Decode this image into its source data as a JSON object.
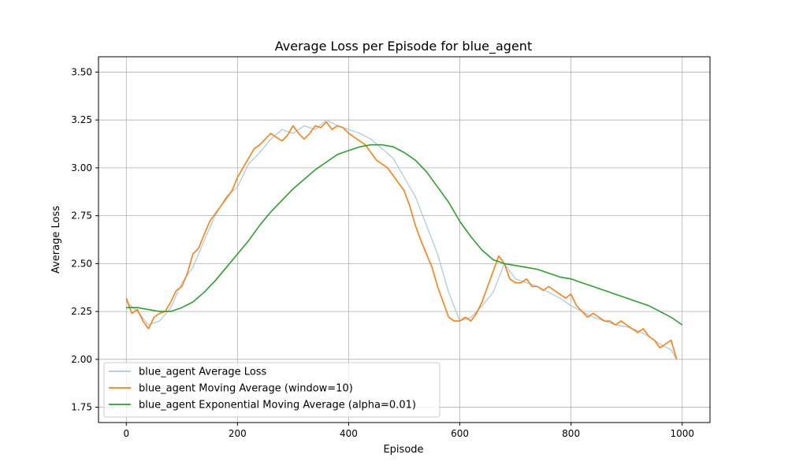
{
  "chart_data": {
    "type": "line",
    "title": "Average Loss per Episode for blue_agent",
    "xlabel": "Episode",
    "ylabel": "Average Loss",
    "xlim": [
      -50,
      1050
    ],
    "ylim": [
      1.67,
      3.58
    ],
    "xticks": [
      0,
      200,
      400,
      600,
      800,
      1000
    ],
    "yticks": [
      1.75,
      2.0,
      2.25,
      2.5,
      2.75,
      3.0,
      3.25,
      3.5
    ],
    "xtick_labels": [
      "0",
      "200",
      "400",
      "600",
      "800",
      "1000"
    ],
    "ytick_labels": [
      "1.75",
      "2.00",
      "2.25",
      "2.50",
      "2.75",
      "3.00",
      "3.25",
      "3.50"
    ],
    "grid": true,
    "legend_position": "lower-left",
    "series": [
      {
        "name": "blue_agent Average Loss",
        "color": "#a6c8e0",
        "x": [
          0,
          20,
          40,
          60,
          80,
          100,
          120,
          140,
          160,
          180,
          200,
          220,
          240,
          260,
          280,
          300,
          320,
          340,
          360,
          380,
          400,
          420,
          440,
          460,
          480,
          500,
          520,
          540,
          560,
          580,
          600,
          620,
          640,
          660,
          680,
          700,
          720,
          740,
          760,
          780,
          800,
          820,
          840,
          860,
          880,
          900,
          920,
          940,
          960,
          980,
          990
        ],
        "y": [
          2.3,
          2.25,
          2.18,
          2.2,
          2.27,
          2.4,
          2.48,
          2.62,
          2.75,
          2.85,
          2.9,
          3.02,
          3.08,
          3.15,
          3.2,
          3.18,
          3.22,
          3.2,
          3.25,
          3.22,
          3.2,
          3.18,
          3.15,
          3.1,
          3.05,
          2.95,
          2.85,
          2.7,
          2.55,
          2.35,
          2.2,
          2.22,
          2.28,
          2.35,
          2.5,
          2.42,
          2.4,
          2.38,
          2.35,
          2.32,
          2.28,
          2.25,
          2.22,
          2.2,
          2.18,
          2.17,
          2.15,
          2.12,
          2.08,
          2.05,
          2.0
        ]
      },
      {
        "name": "blue_agent Moving Average (window=10)",
        "color": "#ff7f0e",
        "x": [
          0,
          10,
          20,
          30,
          40,
          50,
          60,
          70,
          80,
          90,
          100,
          110,
          120,
          130,
          140,
          150,
          160,
          170,
          180,
          190,
          200,
          210,
          220,
          230,
          240,
          250,
          260,
          270,
          280,
          290,
          300,
          310,
          320,
          330,
          340,
          350,
          360,
          370,
          380,
          390,
          400,
          410,
          420,
          430,
          440,
          450,
          460,
          470,
          480,
          490,
          500,
          510,
          520,
          530,
          540,
          550,
          560,
          570,
          580,
          590,
          600,
          610,
          620,
          630,
          640,
          650,
          660,
          670,
          680,
          690,
          700,
          710,
          720,
          730,
          740,
          750,
          760,
          770,
          780,
          790,
          800,
          810,
          820,
          830,
          840,
          850,
          860,
          870,
          880,
          890,
          900,
          910,
          920,
          930,
          940,
          950,
          960,
          970,
          980,
          990
        ],
        "y": [
          2.32,
          2.24,
          2.26,
          2.2,
          2.16,
          2.22,
          2.24,
          2.25,
          2.3,
          2.36,
          2.38,
          2.45,
          2.55,
          2.58,
          2.65,
          2.72,
          2.76,
          2.8,
          2.84,
          2.88,
          2.95,
          3.0,
          3.05,
          3.1,
          3.12,
          3.15,
          3.18,
          3.16,
          3.14,
          3.17,
          3.22,
          3.18,
          3.15,
          3.18,
          3.22,
          3.21,
          3.24,
          3.2,
          3.22,
          3.21,
          3.18,
          3.16,
          3.14,
          3.12,
          3.08,
          3.04,
          3.02,
          3.0,
          2.96,
          2.92,
          2.88,
          2.8,
          2.7,
          2.62,
          2.55,
          2.48,
          2.38,
          2.3,
          2.22,
          2.2,
          2.2,
          2.22,
          2.2,
          2.24,
          2.3,
          2.38,
          2.46,
          2.54,
          2.5,
          2.42,
          2.4,
          2.4,
          2.42,
          2.38,
          2.38,
          2.36,
          2.38,
          2.36,
          2.34,
          2.32,
          2.34,
          2.28,
          2.25,
          2.22,
          2.24,
          2.22,
          2.2,
          2.2,
          2.18,
          2.2,
          2.18,
          2.16,
          2.14,
          2.16,
          2.12,
          2.1,
          2.06,
          2.08,
          2.1,
          2.0
        ]
      },
      {
        "name": "blue_agent Exponential Moving Average (alpha=0.01)",
        "color": "#2ca02c",
        "x": [
          0,
          20,
          40,
          60,
          80,
          100,
          120,
          140,
          160,
          180,
          200,
          220,
          240,
          260,
          280,
          300,
          320,
          340,
          360,
          380,
          400,
          420,
          440,
          460,
          480,
          500,
          520,
          540,
          560,
          580,
          600,
          620,
          640,
          660,
          680,
          700,
          720,
          740,
          760,
          780,
          800,
          820,
          840,
          860,
          880,
          900,
          920,
          940,
          960,
          980,
          1000
        ],
        "y": [
          2.27,
          2.27,
          2.26,
          2.25,
          2.25,
          2.27,
          2.3,
          2.35,
          2.41,
          2.48,
          2.55,
          2.62,
          2.7,
          2.77,
          2.83,
          2.89,
          2.94,
          2.99,
          3.03,
          3.07,
          3.09,
          3.11,
          3.12,
          3.12,
          3.11,
          3.08,
          3.04,
          2.98,
          2.9,
          2.82,
          2.72,
          2.64,
          2.57,
          2.52,
          2.5,
          2.49,
          2.48,
          2.47,
          2.45,
          2.43,
          2.42,
          2.4,
          2.38,
          2.36,
          2.34,
          2.32,
          2.3,
          2.28,
          2.25,
          2.22,
          2.18
        ]
      }
    ]
  }
}
